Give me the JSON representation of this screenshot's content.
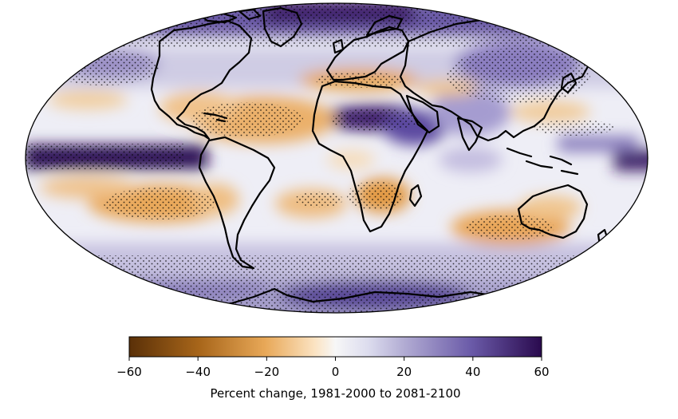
{
  "map": {
    "projection": "Mollweide",
    "field": "percent change",
    "stippling": "dotted",
    "pattern": [
      {
        "region": "equatorial Pacific",
        "sign": "increase",
        "strength": "strong"
      },
      {
        "region": "Arctic and Southern Ocean",
        "sign": "increase",
        "strength": "strong"
      },
      {
        "region": "North Africa and Arabia",
        "sign": "increase",
        "strength": "strong"
      },
      {
        "region": "Mediterranean",
        "sign": "decrease",
        "strength": "moderate"
      },
      {
        "region": "subtropical Atlantic",
        "sign": "decrease",
        "strength": "moderate"
      },
      {
        "region": "southeast Pacific",
        "sign": "decrease",
        "strength": "moderate"
      },
      {
        "region": "southern Africa",
        "sign": "decrease",
        "strength": "moderate"
      },
      {
        "region": "southern Indian Ocean and Australia",
        "sign": "decrease",
        "strength": "moderate"
      }
    ]
  },
  "colorbar": {
    "label": "Percent change, 1981-2000 to 2081-2100",
    "range": [
      -60,
      60
    ],
    "ticks": [
      "−60",
      "−40",
      "−20",
      "0",
      "20",
      "40",
      "60"
    ],
    "tick_values": [
      -60,
      -40,
      -20,
      0,
      20,
      40,
      60
    ],
    "colors": {
      "min": "#5a3008",
      "low": "#c4862e",
      "mid_low": "#f5c98a",
      "zero": "#f7f7f7",
      "mid_high": "#c8c4e0",
      "high": "#6a5aa8",
      "max": "#2a0a4e"
    }
  }
}
